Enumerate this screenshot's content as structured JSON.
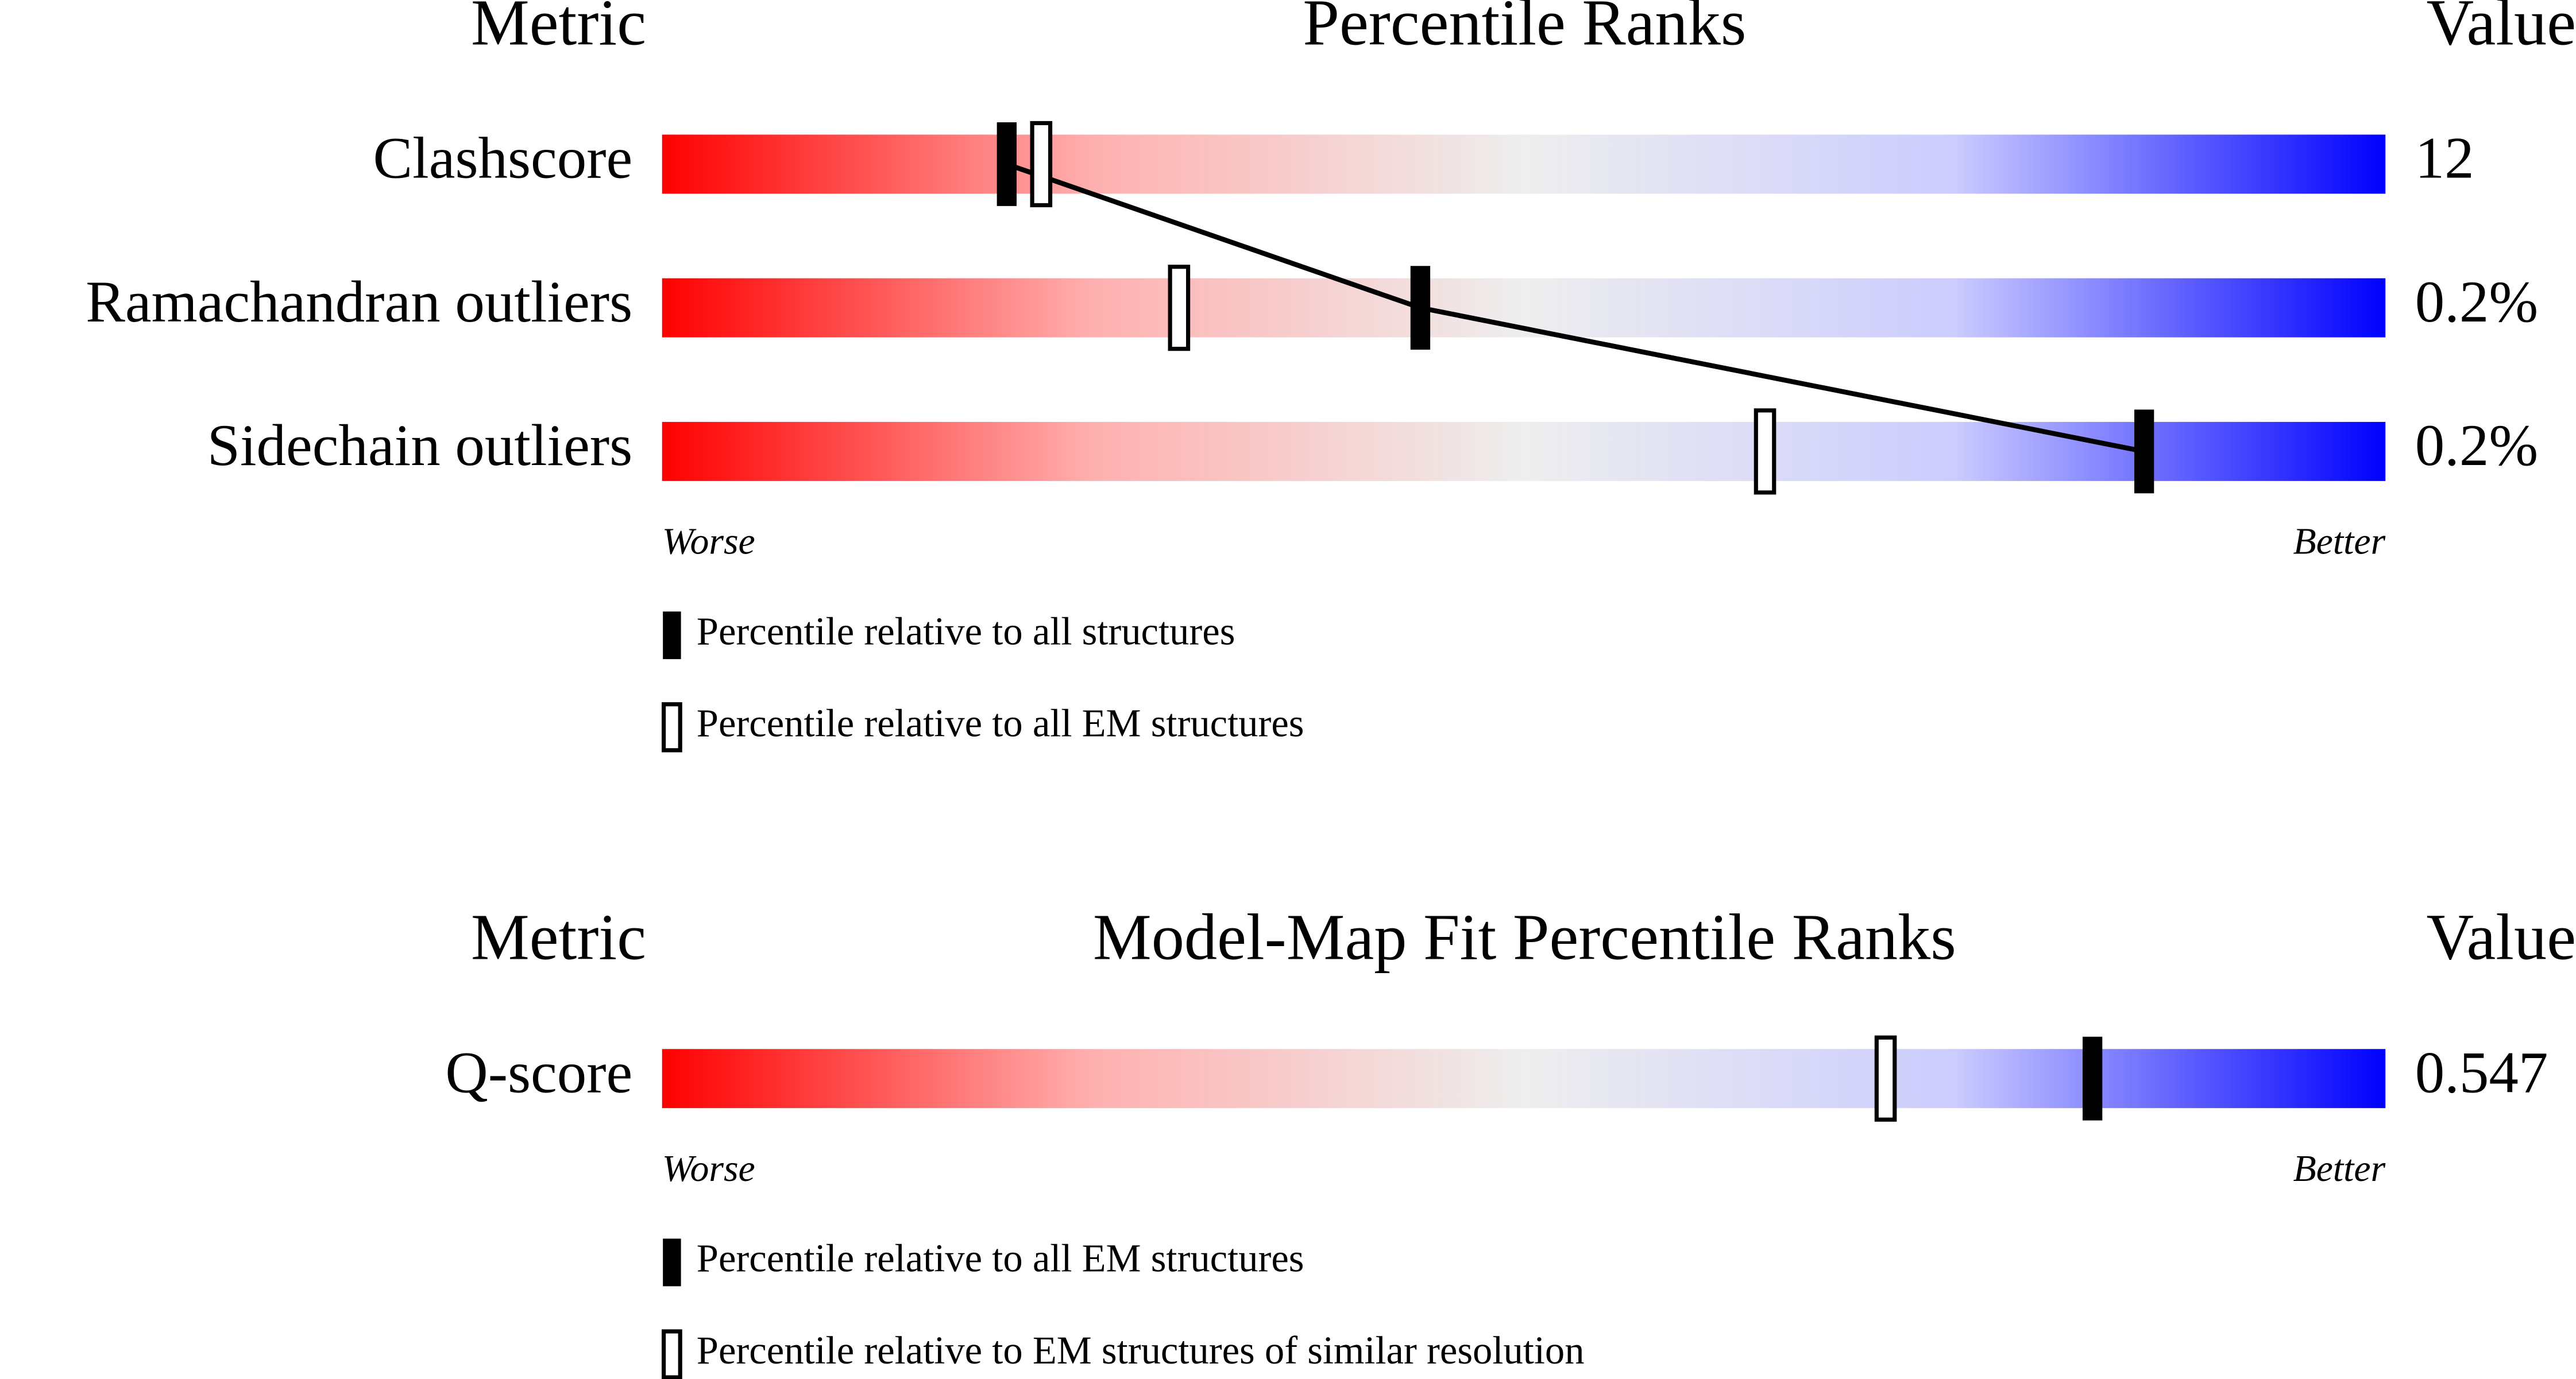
{
  "chart_data": [
    {
      "type": "percentile-slider",
      "metric_header": "Metric",
      "title": "Percentile Ranks",
      "value_header": "Value",
      "categories": [
        "Clashscore",
        "Ramachandran outliers",
        "Sidechain outliers"
      ],
      "metric_values": [
        "12",
        "0.2%",
        "0.2%"
      ],
      "xlim": [
        0,
        100
      ],
      "series": [
        {
          "name": "Percentile relative to all structures",
          "marker": "filled",
          "color": "#000000",
          "values": [
            20,
            44,
            86
          ]
        },
        {
          "name": "Percentile relative to all EM structures",
          "marker": "hollow",
          "color": "#000000",
          "values": [
            22,
            30,
            64
          ]
        }
      ],
      "connect_series": 0,
      "worse_label": "Worse",
      "better_label": "Better"
    },
    {
      "type": "percentile-slider",
      "metric_header": "Metric",
      "title": "Model-Map Fit Percentile Ranks",
      "value_header": "Value",
      "categories": [
        "Q-score"
      ],
      "metric_values": [
        "0.547"
      ],
      "xlim": [
        0,
        100
      ],
      "series": [
        {
          "name": "Percentile relative to all EM structures",
          "marker": "filled",
          "color": "#000000",
          "values": [
            83
          ]
        },
        {
          "name": "Percentile relative to EM structures of similar resolution",
          "marker": "hollow",
          "color": "#000000",
          "values": [
            71
          ]
        }
      ],
      "connect_series": 0,
      "worse_label": "Worse",
      "better_label": "Better"
    }
  ]
}
